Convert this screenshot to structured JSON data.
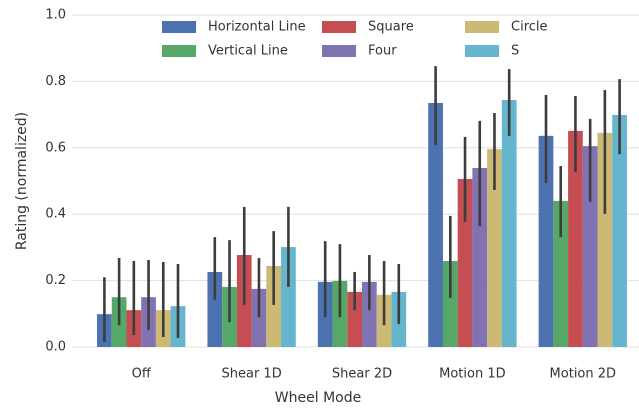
{
  "chart_data": {
    "type": "bar",
    "x_label": "Wheel Mode",
    "y_label": "Rating (normalized)",
    "categories": [
      "Off",
      "Shear 1D",
      "Shear 2D",
      "Motion 1D",
      "Motion 2D"
    ],
    "ylim": [
      0,
      1.0
    ],
    "yticks": [
      {
        "value": 0,
        "label": "0.0"
      },
      {
        "value": 0.2,
        "label": "0.2"
      },
      {
        "value": 0.4,
        "label": "0.4"
      },
      {
        "value": 0.6,
        "label": "0.6"
      },
      {
        "value": 0.8,
        "label": "0.8"
      },
      {
        "value": 1.0,
        "label": "1.0"
      }
    ],
    "grid": true,
    "legend": "upper center",
    "series": [
      {
        "name": "Horizontal Line",
        "color": "#4c72b0",
        "values": [
          0.099,
          0.226,
          0.196,
          0.735,
          0.636
        ],
        "ci_low": [
          0.015,
          0.142,
          0.09,
          0.608,
          0.494
        ],
        "ci_high": [
          0.21,
          0.331,
          0.319,
          0.846,
          0.759
        ]
      },
      {
        "name": "Vertical Line",
        "color": "#55a868",
        "values": [
          0.15,
          0.181,
          0.199,
          0.259,
          0.44
        ],
        "ci_low": [
          0.066,
          0.075,
          0.09,
          0.148,
          0.331
        ],
        "ci_high": [
          0.268,
          0.322,
          0.31,
          0.395,
          0.545
        ]
      },
      {
        "name": "Square",
        "color": "#c44e52",
        "values": [
          0.111,
          0.277,
          0.166,
          0.506,
          0.651
        ],
        "ci_low": [
          0.036,
          0.127,
          0.111,
          0.377,
          0.527
        ],
        "ci_high": [
          0.259,
          0.422,
          0.226,
          0.633,
          0.756
        ]
      },
      {
        "name": "Four",
        "color": "#8172b2",
        "values": [
          0.15,
          0.175,
          0.196,
          0.539,
          0.605
        ],
        "ci_low": [
          0.051,
          0.09,
          0.111,
          0.364,
          0.437
        ],
        "ci_high": [
          0.262,
          0.268,
          0.277,
          0.681,
          0.687
        ]
      },
      {
        "name": "Circle",
        "color": "#ccb974",
        "values": [
          0.111,
          0.244,
          0.157,
          0.596,
          0.645
        ],
        "ci_low": [
          0.03,
          0.127,
          0.066,
          0.473,
          0.401
        ],
        "ci_high": [
          0.256,
          0.349,
          0.259,
          0.705,
          0.774
        ]
      },
      {
        "name": "S",
        "color": "#64b5cd",
        "values": [
          0.123,
          0.301,
          0.166,
          0.744,
          0.699
        ],
        "ci_low": [
          0.027,
          0.181,
          0.069,
          0.636,
          0.581
        ],
        "ci_high": [
          0.25,
          0.422,
          0.25,
          0.837,
          0.807
        ]
      }
    ]
  }
}
